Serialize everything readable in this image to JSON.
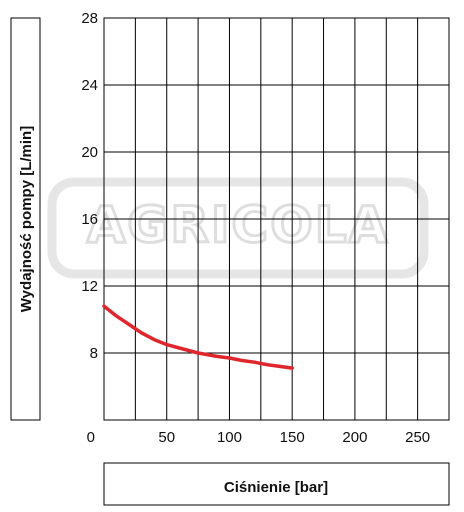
{
  "chart_data": {
    "type": "line",
    "xlabel": "Ciśnienie [bar]",
    "ylabel": "Wydajność pompy [L/min]",
    "xlim": [
      0,
      275
    ],
    "ylim": [
      4,
      28
    ],
    "x_ticks": [
      "0",
      "50",
      "100",
      "150",
      "200",
      "250"
    ],
    "y_ticks": [
      "8",
      "12",
      "16",
      "20",
      "24",
      "28"
    ],
    "grid": true,
    "series": [
      {
        "color": "#e0262d",
        "x": [
          0,
          10,
          20,
          30,
          40,
          50,
          60,
          75,
          90,
          100,
          110,
          120,
          130,
          140,
          150
        ],
        "y": [
          10.8,
          10.2,
          9.7,
          9.2,
          8.8,
          8.5,
          8.3,
          8.0,
          7.8,
          7.7,
          7.55,
          7.45,
          7.3,
          7.2,
          7.1
        ]
      }
    ]
  },
  "watermark": {
    "text": "AGRICOLA"
  }
}
